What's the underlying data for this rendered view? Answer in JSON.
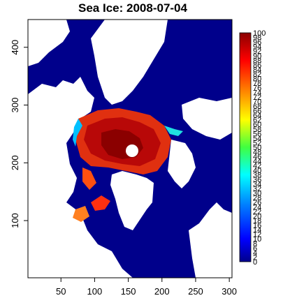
{
  "chart_data": {
    "type": "heatmap",
    "title": "Sea Ice: 2008-07-04",
    "xlabel": "",
    "ylabel": "",
    "xlim": [
      1,
      304
    ],
    "ylim": [
      1,
      448
    ],
    "x_ticks": [
      50,
      100,
      150,
      200,
      250,
      300
    ],
    "y_ticks": [
      100,
      200,
      300,
      400
    ],
    "colorbar": {
      "min": 0,
      "max": 100,
      "labels": [
        100,
        98,
        96,
        94,
        92,
        90,
        88,
        86,
        84,
        82,
        80,
        78,
        76,
        74,
        72,
        70,
        68,
        66,
        64,
        62,
        60,
        58,
        56,
        54,
        52,
        50,
        48,
        46,
        44,
        42,
        40,
        38,
        36,
        34,
        32,
        30,
        28,
        26,
        24,
        22,
        20,
        18,
        16,
        14,
        12,
        10,
        8,
        6,
        4,
        2,
        0
      ]
    },
    "colors": {
      "ocean": "#00008b",
      "land": "#ffffff",
      "pole_hole": "#ffffff",
      "ice_high": "#8b0000",
      "ice_mid": "#ff4500",
      "ice_edge": "#00bfff"
    },
    "regions": {
      "ocean": "sea-ice concentration 0 (dark blue)",
      "land": "no data (white)",
      "central_arctic": "sea-ice concentration ~80-100 (red/orange)"
    }
  }
}
